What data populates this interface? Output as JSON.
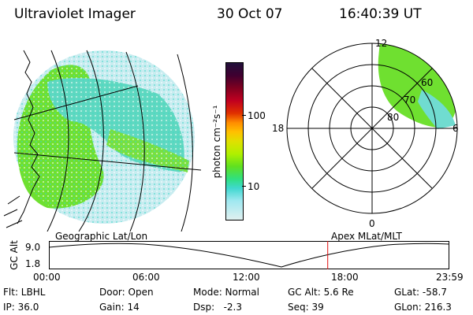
{
  "header": {
    "title": "Ultraviolet Imager",
    "date": "30 Oct 07",
    "time": "16:40:39 UT"
  },
  "colorbar": {
    "unit_label": "photon cm⁻²s⁻¹",
    "tick_labels": [
      "100",
      "10"
    ],
    "colors": [
      "#20103a",
      "#400030",
      "#800020",
      "#c00020",
      "#e03000",
      "#ff8c00",
      "#ffc000",
      "#e0e000",
      "#b0f000",
      "#60e020",
      "#30e080",
      "#40d8d0",
      "#a0e8f0",
      "#e0f0f0"
    ]
  },
  "polar_plot": {
    "mlt_labels": {
      "top": "12",
      "left": "18",
      "right": "6",
      "bottom": "0"
    },
    "lat_labels": [
      "60",
      "70",
      "80"
    ]
  },
  "timeline": {
    "left_label": "Geographic Lat/Lon",
    "right_label": "Apex MLat/MLT",
    "axis_label": "GC Alt",
    "y_ticks": [
      "9.0",
      "1.8"
    ],
    "x_ticks": [
      "00:00",
      "06:00",
      "12:00",
      "18:00",
      "23:59"
    ],
    "current_time_fraction": 0.6963
  },
  "info": {
    "flt": "Flt: LBHL",
    "ip": "IP: 36.0",
    "door": "Door: Open",
    "gain": "Gain: 14",
    "mode": "Mode: Normal",
    "dsp": "Dsp:   -2.3",
    "gcalt": "GC Alt: 5.6 Re",
    "seq": "Seq: 39",
    "glat": "GLat: -58.7",
    "glon": "GLon: 216.3"
  }
}
